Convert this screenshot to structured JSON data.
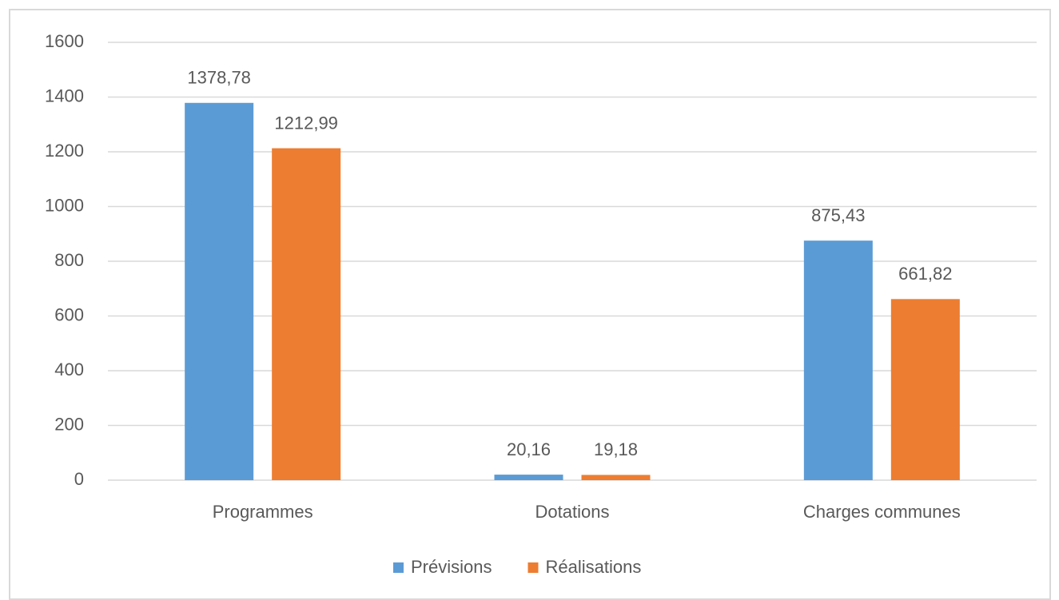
{
  "chart_data": {
    "type": "bar",
    "categories": [
      "Programmes",
      "Dotations",
      "Charges communes"
    ],
    "series": [
      {
        "name": "Prévisions",
        "color": "#5b9bd5",
        "values": [
          1378.78,
          20.16,
          875.43
        ],
        "value_labels": [
          "1378,78",
          "20,16",
          "875,43"
        ]
      },
      {
        "name": "Réalisations",
        "color": "#ed7d31",
        "values": [
          1212.99,
          19.18,
          661.82
        ],
        "value_labels": [
          "1212,99",
          "19,18",
          "661,82"
        ]
      }
    ],
    "ylim": [
      0,
      1600
    ],
    "yticks": [
      0,
      200,
      400,
      600,
      800,
      1000,
      1200,
      1400,
      1600
    ],
    "grid": true,
    "legend": "bottom"
  }
}
